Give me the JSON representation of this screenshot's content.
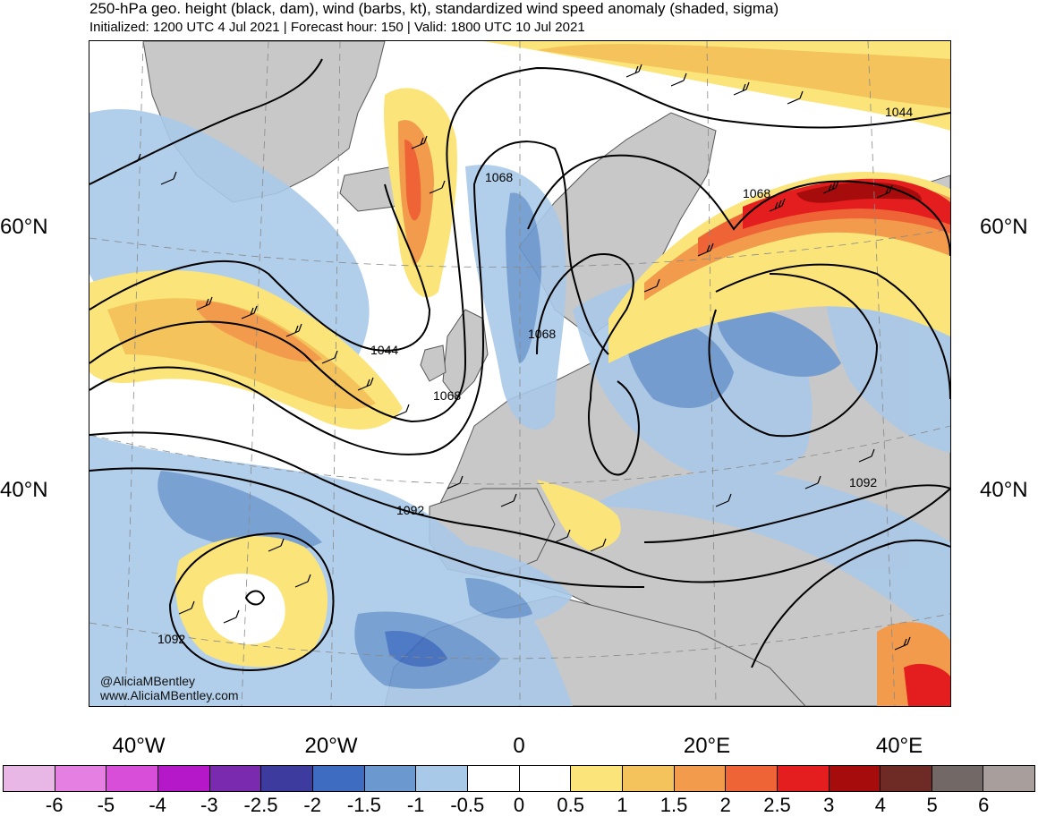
{
  "title": "250-hPa geo. height (black, dam), wind (barbs, kt), standardized wind speed anomaly (shaded, sigma)",
  "subtitle": "Initialized: 1200 UTC 4 Jul 2021 | Forecast hour: 150 | Valid: 1800 UTC 10 Jul 2021",
  "lat_labels": {
    "n60": "60°N",
    "n40": "40°N"
  },
  "lon_labels": [
    "40°W",
    "20°W",
    "0",
    "20°E",
    "40°E"
  ],
  "contour_labels": [
    "1044",
    "1068",
    "1068",
    "1068",
    "1044",
    "1068",
    "1092",
    "1092",
    "1092"
  ],
  "credit": {
    "handle": "@AliciaMBentley",
    "site": "www.AliciaMBentley.com"
  },
  "colorbar": {
    "colors": [
      "#e9b7e6",
      "#e57fe2",
      "#d84ed9",
      "#b418c9",
      "#7a2aae",
      "#3d3b9e",
      "#3d6cc0",
      "#6b98cf",
      "#a9c9e8",
      "#ffffff",
      "#ffffff",
      "#fbe57a",
      "#f4c35c",
      "#f29b4c",
      "#ef6436",
      "#e41e1e",
      "#a70c0c",
      "#6e2a24",
      "#726866",
      "#a89e9c"
    ],
    "ticks": [
      "-6",
      "-5",
      "-4",
      "-3",
      "-2.5",
      "-2",
      "-1.5",
      "-1",
      "-0.5",
      "0",
      "0.5",
      "1",
      "1.5",
      "2",
      "2.5",
      "3",
      "4",
      "5",
      "6"
    ]
  },
  "map_colors": {
    "land": "#c8c8c8",
    "coast": "#555555",
    "contour": "#000000",
    "neg_light": "#a9c9e8",
    "neg_mid": "#6b98cf",
    "neg_dark": "#3d6cc0",
    "pos_1": "#fbe57a",
    "pos_2": "#f4c35c",
    "pos_3": "#f29b4c",
    "pos_4": "#ef6436",
    "pos_5": "#e41e1e",
    "pos_6": "#a70c0c"
  }
}
